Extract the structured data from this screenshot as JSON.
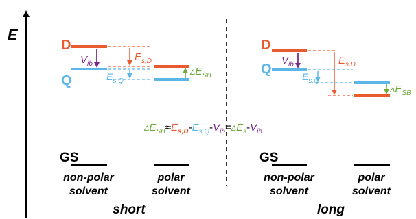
{
  "energy_axis": {
    "label": "E"
  },
  "states": {
    "D": "D",
    "Q": "Q",
    "GS": "GS"
  },
  "labels": {
    "vib": "V",
    "vib_sub": "ib",
    "esd": "E",
    "esd_sub": "s,D",
    "esq": "E",
    "esq_sub": "s,Q",
    "desb_delta": "Δ",
    "desb": "E",
    "desb_sub": "SB"
  },
  "equation": {
    "p1_delta": "Δ",
    "p1_e": "E",
    "p1_sub": "SB",
    "approx": "≈",
    "p2_e": "E",
    "p2_sub": "s,D",
    "minus1": "-",
    "p3_e": "E",
    "p3_sub": "s,Q",
    "minus2": "-",
    "p4_v": "V",
    "p4_sub": "ib",
    "eq": "=",
    "p5_delta": "Δ",
    "p5_e": "E",
    "p5_sub": "s",
    "minus3": "-",
    "p6_v": "V",
    "p6_sub": "ib"
  },
  "solvents": {
    "nonpolar_line1": "non-polar",
    "nonpolar_line2": "solvent",
    "polar_line1": "polar",
    "polar_line2": "solvent"
  },
  "panels": {
    "left": "short",
    "right": "long"
  },
  "colors": {
    "D": "#ea5a2f",
    "Q": "#5cb6e8",
    "vib": "#7b2a8c",
    "sb": "#6ea83a",
    "black": "#000000"
  }
}
